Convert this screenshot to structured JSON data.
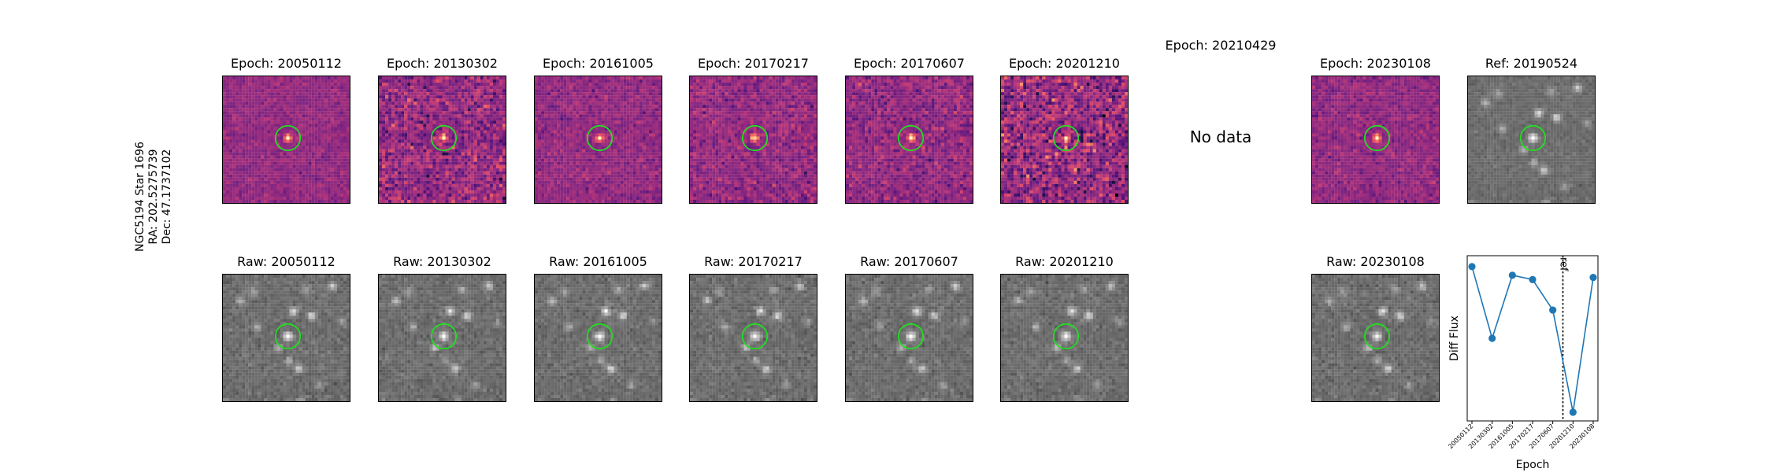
{
  "star_info": {
    "line1": "NGC5194 Star 1696",
    "line2": "RA: 202.5275739",
    "line3": "Dec: 47.1737102"
  },
  "diff_panels": [
    {
      "title": "Epoch: 20050112",
      "noise": 0.35
    },
    {
      "title": "Epoch: 20130302",
      "noise": 0.85
    },
    {
      "title": "Epoch: 20161005",
      "noise": 0.45
    },
    {
      "title": "Epoch: 20170217",
      "noise": 0.55
    },
    {
      "title": "Epoch: 20170607",
      "noise": 0.6
    },
    {
      "title": "Epoch: 20201210",
      "noise": 1.1
    }
  ],
  "missing_panel": {
    "title": "Epoch: 20210429",
    "message": "No data"
  },
  "diff_extra": {
    "title": "Epoch: 20230108",
    "noise": 0.45
  },
  "ref_panel": {
    "title": "Ref: 20190524"
  },
  "raw_panels": [
    {
      "title": "Raw: 20050112"
    },
    {
      "title": "Raw: 20130302"
    },
    {
      "title": "Raw: 20161005"
    },
    {
      "title": "Raw: 20170217"
    },
    {
      "title": "Raw: 20170607"
    },
    {
      "title": "Raw: 20201210"
    },
    {
      "title": "Raw: 20230108"
    }
  ],
  "colors": {
    "marker_circle": "#22dd22",
    "series": "#1f77b4",
    "diff_colormap": "magma",
    "raw_colormap": "gray"
  },
  "chart_data": {
    "type": "line",
    "xlabel": "Epoch",
    "ylabel": "Diff Flux",
    "x": [
      "20050112",
      "20130302",
      "20161005",
      "20170217",
      "20170607",
      "20201210",
      "20230108"
    ],
    "series": [
      {
        "values": [
          0.93,
          0.6,
          0.89,
          0.87,
          0.73,
          0.26,
          0.88
        ]
      }
    ],
    "ylim": [
      0.22,
      0.98
    ],
    "reference_line": {
      "after_index": 4,
      "label": "ref"
    },
    "grid": false
  }
}
